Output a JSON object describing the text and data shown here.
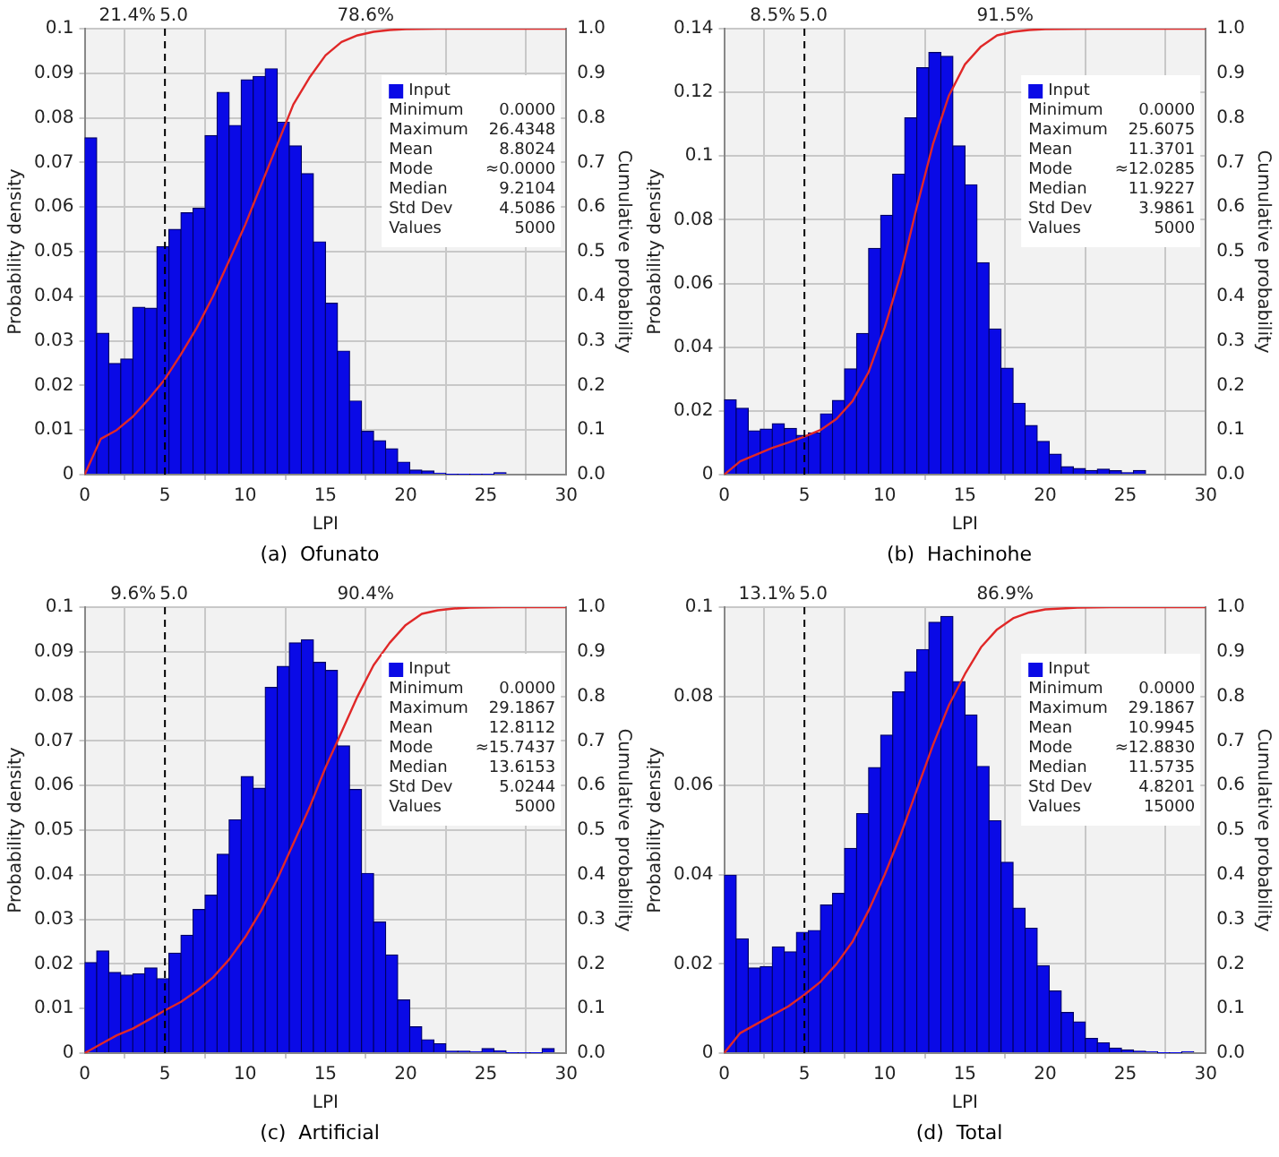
{
  "chart_data": [
    {
      "type": "histogram",
      "title": "(a)  Ofunato",
      "xlabel": "LPI",
      "ylabel": "Probability density",
      "y2label": "Cumulative probability",
      "bins": [
        0,
        0.75,
        1.5,
        2.25,
        3,
        3.75,
        4.5,
        5.25,
        6,
        6.75,
        7.5,
        8.25,
        9,
        9.75,
        10.5,
        11.25,
        12,
        12.75,
        13.5,
        14.25,
        15,
        15.75,
        16.5,
        17.25,
        18,
        18.75,
        19.5,
        20.25,
        21,
        21.75,
        22.5,
        23.25,
        24,
        24.75,
        25.5,
        26.25
      ],
      "series": [
        {
          "name": "Input",
          "color": "#0a0ae6",
          "values": [
            0.0755,
            0.0317,
            0.0249,
            0.0259,
            0.0375,
            0.0373,
            0.0511,
            0.055,
            0.0587,
            0.0597,
            0.076,
            0.0857,
            0.0783,
            0.0885,
            0.0893,
            0.091,
            0.079,
            0.0737,
            0.0675,
            0.0522,
            0.0384,
            0.0277,
            0.0165,
            0.0097,
            0.0076,
            0.0058,
            0.0028,
            0.001,
            0.0008,
            0.0003,
            0.0001,
            0.0001,
            0.0001,
            0.0001,
            0.0004
          ]
        },
        {
          "type": "line",
          "axis": "y2",
          "color": "#e02828",
          "x": [
            0,
            0.75,
            1,
            2,
            3,
            4,
            5,
            6,
            7,
            8,
            9,
            10,
            11,
            12,
            13,
            14,
            15,
            16,
            17,
            18,
            19,
            20,
            22,
            30
          ],
          "values": [
            0,
            0.06,
            0.08,
            0.1,
            0.13,
            0.17,
            0.214,
            0.27,
            0.33,
            0.4,
            0.48,
            0.56,
            0.65,
            0.74,
            0.83,
            0.89,
            0.94,
            0.97,
            0.985,
            0.993,
            0.997,
            0.999,
            1,
            1
          ]
        }
      ],
      "xlim": [
        0,
        30
      ],
      "xticks": [
        0,
        5,
        10,
        15,
        20,
        25,
        30
      ],
      "ylim": [
        0,
        0.1
      ],
      "yticks": [
        0,
        0.01,
        0.02,
        0.03,
        0.04,
        0.05,
        0.06,
        0.07,
        0.08,
        0.09,
        0.1
      ],
      "y2lim": [
        0,
        1
      ],
      "y2ticks": [
        {
          "value": 0,
          "label": "0.0"
        },
        {
          "value": 0.1,
          "label": "0.1"
        },
        {
          "value": 0.2,
          "label": "0.2"
        },
        {
          "value": 0.3,
          "label": "0.3"
        },
        {
          "value": 0.4,
          "label": "0.4"
        },
        {
          "value": 0.5,
          "label": "0.5"
        },
        {
          "value": 0.6,
          "label": "0.6"
        },
        {
          "value": 0.7,
          "label": "0.7"
        },
        {
          "value": 0.8,
          "label": "0.8"
        },
        {
          "value": 0.9,
          "label": "0.9"
        },
        {
          "value": 1,
          "label": "1.0"
        }
      ],
      "ref_lines": [
        {
          "axis": "x",
          "value": 5,
          "label": "5.0",
          "line_style": "dashed"
        }
      ],
      "annotations": [
        "21.4%",
        "78.6%",
        "Minimum 0.0000",
        "Maximum 26.4348",
        "Mean 8.8024",
        "Mode ≈0.0000",
        "Median 9.2104",
        "Std Dev 4.5086",
        "Values 5000"
      ],
      "grid": true,
      "legend": "top right"
    },
    {
      "type": "histogram",
      "title": "(b)  Hachinohe",
      "xlabel": "LPI",
      "ylabel": "Probability density",
      "y2label": "Cumulative probability",
      "bins": [
        0,
        0.75,
        1.5,
        2.25,
        3,
        3.75,
        4.5,
        5.25,
        6,
        6.75,
        7.5,
        8.25,
        9,
        9.75,
        10.5,
        11.25,
        12,
        12.75,
        13.5,
        14.25,
        15,
        15.75,
        16.5,
        17.25,
        18,
        18.75,
        19.5,
        20.25,
        21,
        21.75,
        22.5,
        23.25,
        24,
        24.75,
        25.5,
        26.25
      ],
      "series": [
        {
          "name": "Input",
          "color": "#0a0ae6",
          "values": [
            0.0235,
            0.0208,
            0.0137,
            0.0143,
            0.016,
            0.0145,
            0.0123,
            0.0131,
            0.0191,
            0.0233,
            0.0332,
            0.0443,
            0.071,
            0.0814,
            0.0943,
            0.112,
            0.1277,
            0.1325,
            0.1313,
            0.1032,
            0.091,
            0.0665,
            0.0457,
            0.0334,
            0.0224,
            0.0154,
            0.0104,
            0.0064,
            0.0025,
            0.0019,
            0.0013,
            0.0017,
            0.0012,
            0.0006,
            0.0013
          ]
        },
        {
          "type": "line",
          "axis": "y2",
          "color": "#e02828",
          "x": [
            0,
            1,
            2,
            3,
            4,
            5,
            6,
            7,
            8,
            9,
            10,
            11,
            12,
            13,
            14,
            15,
            16,
            17,
            18,
            19,
            20,
            23,
            30
          ],
          "values": [
            0,
            0.03,
            0.045,
            0.06,
            0.072,
            0.085,
            0.1,
            0.125,
            0.165,
            0.23,
            0.33,
            0.45,
            0.6,
            0.74,
            0.85,
            0.92,
            0.96,
            0.985,
            0.993,
            0.997,
            0.999,
            1,
            1
          ]
        }
      ],
      "xlim": [
        0,
        30
      ],
      "xticks": [
        0,
        5,
        10,
        15,
        20,
        25,
        30
      ],
      "ylim": [
        0,
        0.14
      ],
      "yticks": [
        0,
        0.02,
        0.04,
        0.06,
        0.08,
        0.1,
        0.12,
        0.14
      ],
      "y2lim": [
        0,
        1
      ],
      "y2ticks": [
        {
          "value": 0,
          "label": "0.0"
        },
        {
          "value": 0.1,
          "label": "0.1"
        },
        {
          "value": 0.2,
          "label": "0.2"
        },
        {
          "value": 0.3,
          "label": "0.3"
        },
        {
          "value": 0.4,
          "label": "0.4"
        },
        {
          "value": 0.5,
          "label": "0.5"
        },
        {
          "value": 0.6,
          "label": "0.6"
        },
        {
          "value": 0.7,
          "label": "0.7"
        },
        {
          "value": 0.8,
          "label": "0.8"
        },
        {
          "value": 0.9,
          "label": "0.9"
        },
        {
          "value": 1,
          "label": "1.0"
        }
      ],
      "ref_lines": [
        {
          "axis": "x",
          "value": 5,
          "label": "5.0",
          "line_style": "dashed"
        }
      ],
      "annotations": [
        "8.5%",
        "91.5%",
        "Minimum 0.0000",
        "Maximum 25.6075",
        "Mean 11.3701",
        "Mode ≈12.0285",
        "Median 11.9227",
        "Std Dev 3.9861",
        "Values 5000"
      ],
      "grid": true,
      "legend": "top right"
    },
    {
      "type": "histogram",
      "title": "(c)  Artificial",
      "xlabel": "LPI",
      "ylabel": "Probability density",
      "y2label": "Cumulative probability",
      "bins": [
        0,
        0.75,
        1.5,
        2.25,
        3,
        3.75,
        4.5,
        5.25,
        6,
        6.75,
        7.5,
        8.25,
        9,
        9.75,
        10.5,
        11.25,
        12,
        12.75,
        13.5,
        14.25,
        15,
        15.75,
        16.5,
        17.25,
        18,
        18.75,
        19.5,
        20.25,
        21,
        21.75,
        22.5,
        23.25,
        24,
        24.75,
        25.5,
        26.25,
        27,
        27.75,
        28.5,
        29.25
      ],
      "series": [
        {
          "name": "Input",
          "color": "#0a0ae6",
          "values": [
            0.0203,
            0.0229,
            0.0181,
            0.0175,
            0.0178,
            0.0191,
            0.0167,
            0.0224,
            0.0264,
            0.0322,
            0.0354,
            0.0446,
            0.0523,
            0.062,
            0.0594,
            0.082,
            0.0867,
            0.092,
            0.0927,
            0.0876,
            0.0858,
            0.0689,
            0.0591,
            0.0403,
            0.0294,
            0.022,
            0.0119,
            0.0059,
            0.003,
            0.0021,
            0.0004,
            0.0004,
            0.0003,
            0.001,
            0.0005,
            0.0001,
            0.0001,
            0.0001,
            0.001
          ]
        },
        {
          "type": "line",
          "axis": "y2",
          "color": "#e02828",
          "x": [
            0,
            1,
            2,
            3,
            4,
            5,
            6,
            7,
            8,
            9,
            10,
            11,
            12,
            13,
            14,
            15,
            16,
            17,
            18,
            19,
            20,
            21,
            22,
            23,
            24,
            26,
            30
          ],
          "values": [
            0,
            0.02,
            0.04,
            0.055,
            0.075,
            0.096,
            0.115,
            0.14,
            0.17,
            0.21,
            0.26,
            0.32,
            0.39,
            0.47,
            0.55,
            0.64,
            0.72,
            0.8,
            0.87,
            0.92,
            0.96,
            0.985,
            0.993,
            0.997,
            0.999,
            1,
            1
          ]
        }
      ],
      "xlim": [
        0,
        30
      ],
      "xticks": [
        0,
        5,
        10,
        15,
        20,
        25,
        30
      ],
      "ylim": [
        0,
        0.1
      ],
      "yticks": [
        0,
        0.01,
        0.02,
        0.03,
        0.04,
        0.05,
        0.06,
        0.07,
        0.08,
        0.09,
        0.1
      ],
      "y2lim": [
        0,
        1
      ],
      "y2ticks": [
        {
          "value": 0,
          "label": "0.0"
        },
        {
          "value": 0.1,
          "label": "0.1"
        },
        {
          "value": 0.2,
          "label": "0.2"
        },
        {
          "value": 0.3,
          "label": "0.3"
        },
        {
          "value": 0.4,
          "label": "0.4"
        },
        {
          "value": 0.5,
          "label": "0.5"
        },
        {
          "value": 0.6,
          "label": "0.6"
        },
        {
          "value": 0.7,
          "label": "0.7"
        },
        {
          "value": 0.8,
          "label": "0.8"
        },
        {
          "value": 0.9,
          "label": "0.9"
        },
        {
          "value": 1,
          "label": "1.0"
        }
      ],
      "ref_lines": [
        {
          "axis": "x",
          "value": 5,
          "label": "5.0",
          "line_style": "dashed"
        }
      ],
      "annotations": [
        "9.6%",
        "90.4%",
        "Minimum 0.0000",
        "Maximum 29.1867",
        "Mean 12.8112",
        "Mode ≈15.7437",
        "Median 13.6153",
        "Std Dev 5.0244",
        "Values 5000"
      ],
      "grid": true,
      "legend": "top right"
    },
    {
      "type": "histogram",
      "title": "(d)  Total",
      "xlabel": "LPI",
      "ylabel": "Probability density",
      "y2label": "Cumulative probability",
      "bins": [
        0,
        0.75,
        1.5,
        2.25,
        3,
        3.75,
        4.5,
        5.25,
        6,
        6.75,
        7.5,
        8.25,
        9,
        9.75,
        10.5,
        11.25,
        12,
        12.75,
        13.5,
        14.25,
        15,
        15.75,
        16.5,
        17.25,
        18,
        18.75,
        19.5,
        20.25,
        21,
        21.75,
        22.5,
        23.25,
        24,
        24.75,
        25.5,
        26.25,
        27,
        27.75,
        28.5,
        29.25
      ],
      "series": [
        {
          "name": "Input",
          "color": "#0a0ae6",
          "values": [
            0.0399,
            0.0256,
            0.0191,
            0.0194,
            0.0238,
            0.0227,
            0.0271,
            0.0275,
            0.0332,
            0.0358,
            0.0459,
            0.0537,
            0.064,
            0.0713,
            0.081,
            0.0855,
            0.0905,
            0.0966,
            0.0979,
            0.0833,
            0.0758,
            0.0643,
            0.0521,
            0.0428,
            0.0325,
            0.028,
            0.0196,
            0.0139,
            0.0091,
            0.007,
            0.0033,
            0.0023,
            0.0011,
            0.0007,
            0.0004,
            0.0003,
            0.0001,
            0.0001,
            0.0003
          ]
        },
        {
          "type": "line",
          "axis": "y2",
          "color": "#e02828",
          "x": [
            0,
            1,
            2,
            3,
            4,
            5,
            6,
            7,
            8,
            9,
            10,
            11,
            12,
            13,
            14,
            15,
            16,
            17,
            18,
            19,
            20,
            22,
            24,
            30
          ],
          "values": [
            0,
            0.045,
            0.065,
            0.085,
            0.105,
            0.131,
            0.16,
            0.2,
            0.25,
            0.32,
            0.4,
            0.49,
            0.59,
            0.69,
            0.78,
            0.85,
            0.91,
            0.95,
            0.975,
            0.988,
            0.995,
            0.999,
            1,
            1
          ]
        }
      ],
      "xlim": [
        0,
        30
      ],
      "xticks": [
        0,
        5,
        10,
        15,
        20,
        25,
        30
      ],
      "ylim": [
        0,
        0.1
      ],
      "yticks": [
        0,
        0.02,
        0.04,
        0.06,
        0.08,
        0.1
      ],
      "y2lim": [
        0,
        1
      ],
      "y2ticks": [
        {
          "value": 0,
          "label": "0.0"
        },
        {
          "value": 0.1,
          "label": "0.1"
        },
        {
          "value": 0.2,
          "label": "0.2"
        },
        {
          "value": 0.3,
          "label": "0.3"
        },
        {
          "value": 0.4,
          "label": "0.4"
        },
        {
          "value": 0.5,
          "label": "0.5"
        },
        {
          "value": 0.6,
          "label": "0.6"
        },
        {
          "value": 0.7,
          "label": "0.7"
        },
        {
          "value": 0.8,
          "label": "0.8"
        },
        {
          "value": 0.9,
          "label": "0.9"
        },
        {
          "value": 1,
          "label": "1.0"
        }
      ],
      "ref_lines": [
        {
          "axis": "x",
          "value": 5,
          "label": "5.0",
          "line_style": "dashed"
        }
      ],
      "annotations": [
        "13.1%",
        "86.9%",
        "Minimum 0.0000",
        "Maximum 29.1867",
        "Mean 10.9945",
        "Mode ≈12.8830",
        "Median 11.5735",
        "Std Dev 4.8201",
        "Values 15000"
      ],
      "grid": true,
      "legend": "top right"
    }
  ]
}
